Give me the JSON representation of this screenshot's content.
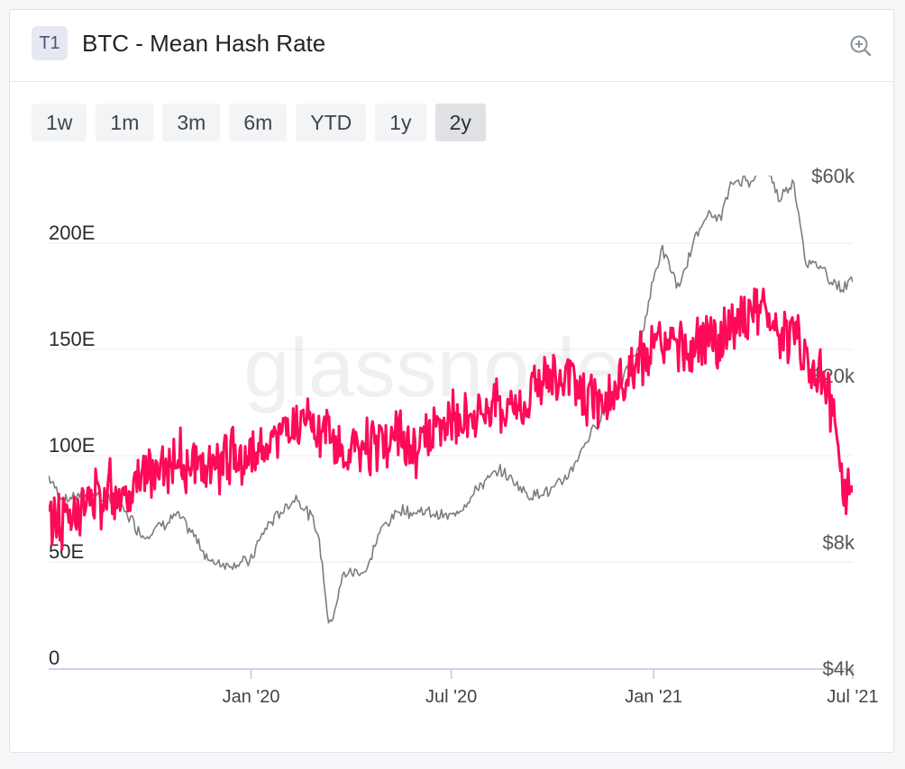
{
  "header": {
    "badge": "T1",
    "title": "BTC - Mean Hash Rate",
    "zoom_icon": "zoom-in-icon"
  },
  "range_buttons": [
    {
      "label": "1w",
      "active": false
    },
    {
      "label": "1m",
      "active": false
    },
    {
      "label": "3m",
      "active": false
    },
    {
      "label": "6m",
      "active": false
    },
    {
      "label": "YTD",
      "active": false
    },
    {
      "label": "1y",
      "active": false
    },
    {
      "label": "2y",
      "active": true
    }
  ],
  "watermark": "glassnode",
  "colors": {
    "hash_rate": "#ff0a58",
    "price": "#7d7d7d",
    "grid": "#e9ebee",
    "axis_text": "#2b2b2b"
  },
  "chart_data": {
    "type": "line",
    "title": "BTC - Mean Hash Rate",
    "x_range": [
      "2019-07-01",
      "2021-07-01"
    ],
    "x_ticks": [
      {
        "date": "2020-01-01",
        "label": "Jan '20"
      },
      {
        "date": "2020-07-01",
        "label": "Jul '20"
      },
      {
        "date": "2021-01-01",
        "label": "Jan '21"
      },
      {
        "date": "2021-07-01",
        "label": "Jul '21"
      }
    ],
    "y_left": {
      "scale": "linear",
      "range": [
        0,
        200
      ],
      "ticks": [
        {
          "value": 0,
          "label": "0"
        },
        {
          "value": 50,
          "label": "50E"
        },
        {
          "value": 100,
          "label": "100E"
        },
        {
          "value": 150,
          "label": "150E"
        },
        {
          "value": 200,
          "label": "200E"
        }
      ]
    },
    "y_right": {
      "scale": "log",
      "ticks": [
        {
          "value": 4000,
          "label": "$4k"
        },
        {
          "value": 8000,
          "label": "$8k"
        },
        {
          "value": 20000,
          "label": "$20k"
        },
        {
          "value": 60000,
          "label": "$60k"
        }
      ]
    },
    "grid": true,
    "series": [
      {
        "axis": "left",
        "points": [
          [
            "2019-07-01",
            70
          ],
          [
            "2019-08-01",
            75
          ],
          [
            "2019-09-01",
            85
          ],
          [
            "2019-10-01",
            92
          ],
          [
            "2019-11-01",
            96
          ],
          [
            "2019-12-01",
            95
          ],
          [
            "2020-01-01",
            102
          ],
          [
            "2020-02-01",
            110
          ],
          [
            "2020-03-01",
            112
          ],
          [
            "2020-04-01",
            100
          ],
          [
            "2020-05-01",
            108
          ],
          [
            "2020-06-01",
            105
          ],
          [
            "2020-07-01",
            115
          ],
          [
            "2020-08-01",
            120
          ],
          [
            "2020-09-01",
            122
          ],
          [
            "2020-10-01",
            138
          ],
          [
            "2020-11-01",
            126
          ],
          [
            "2020-12-01",
            132
          ],
          [
            "2021-01-01",
            148
          ],
          [
            "2021-02-01",
            150
          ],
          [
            "2021-03-01",
            158
          ],
          [
            "2021-04-01",
            170
          ],
          [
            "2021-05-01",
            158
          ],
          [
            "2021-05-15",
            150
          ],
          [
            "2021-06-01",
            140
          ],
          [
            "2021-06-15",
            115
          ],
          [
            "2021-06-25",
            75
          ],
          [
            "2021-07-01",
            92
          ]
        ]
      },
      {
        "axis": "right",
        "points": [
          [
            "2019-07-01",
            11500
          ],
          [
            "2019-07-15",
            10000
          ],
          [
            "2019-08-01",
            10500
          ],
          [
            "2019-08-15",
            10300
          ],
          [
            "2019-09-01",
            10000
          ],
          [
            "2019-09-25",
            8300
          ],
          [
            "2019-10-25",
            9300
          ],
          [
            "2019-11-25",
            7200
          ],
          [
            "2019-12-15",
            7100
          ],
          [
            "2019-12-31",
            7200
          ],
          [
            "2020-01-15",
            8700
          ],
          [
            "2020-02-12",
            10300
          ],
          [
            "2020-03-01",
            8600
          ],
          [
            "2020-03-12",
            5000
          ],
          [
            "2020-03-25",
            6700
          ],
          [
            "2020-04-15",
            6900
          ],
          [
            "2020-05-01",
            8800
          ],
          [
            "2020-05-15",
            9600
          ],
          [
            "2020-06-01",
            9500
          ],
          [
            "2020-07-01",
            9100
          ],
          [
            "2020-07-28",
            11000
          ],
          [
            "2020-08-15",
            11800
          ],
          [
            "2020-09-10",
            10400
          ],
          [
            "2020-10-01",
            10600
          ],
          [
            "2020-10-20",
            12000
          ],
          [
            "2020-11-15",
            16000
          ],
          [
            "2020-12-01",
            19000
          ],
          [
            "2020-12-20",
            23500
          ],
          [
            "2021-01-08",
            40000
          ],
          [
            "2021-01-25",
            32000
          ],
          [
            "2021-02-15",
            48000
          ],
          [
            "2021-03-01",
            47000
          ],
          [
            "2021-03-15",
            58000
          ],
          [
            "2021-04-01",
            59000
          ],
          [
            "2021-04-14",
            63000
          ],
          [
            "2021-04-25",
            52000
          ],
          [
            "2021-05-08",
            58000
          ],
          [
            "2021-05-19",
            38000
          ],
          [
            "2021-06-01",
            36000
          ],
          [
            "2021-06-22",
            32000
          ],
          [
            "2021-07-01",
            34000
          ]
        ]
      }
    ]
  }
}
